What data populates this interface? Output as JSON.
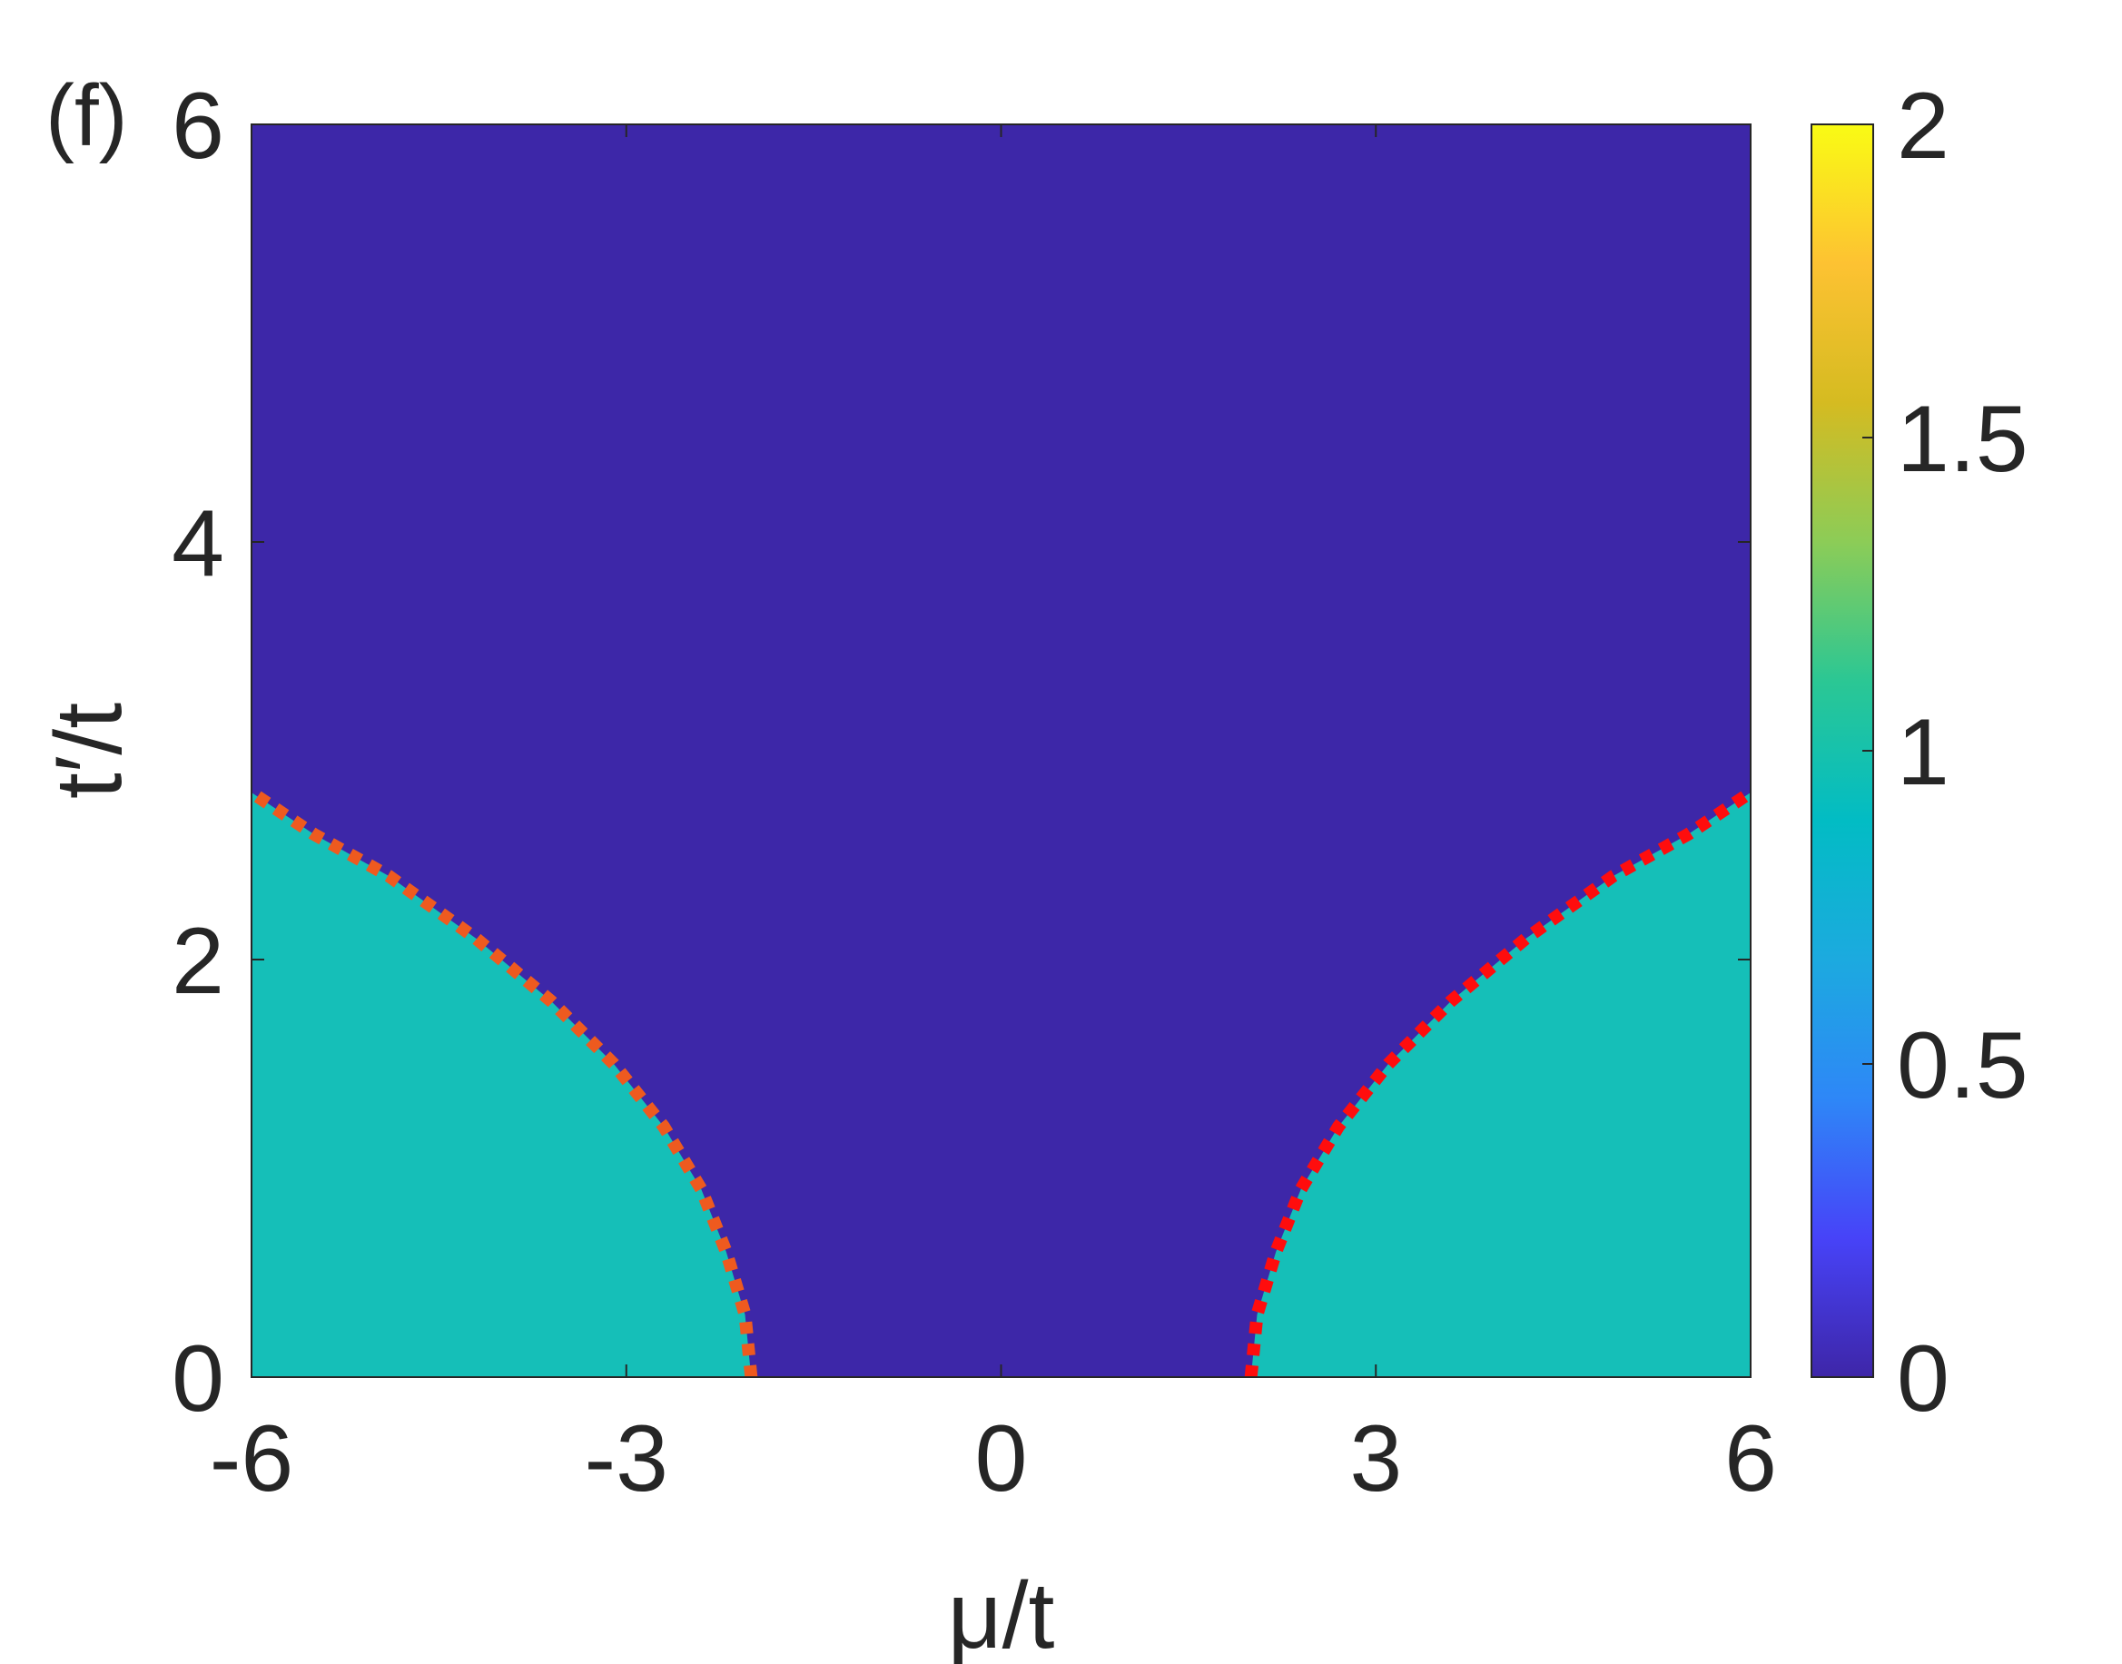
{
  "chart_data": {
    "type": "heatmap",
    "panel_label": "(f)",
    "xlabel": "μ/t",
    "ylabel": "t′/t",
    "xlim": [
      -6,
      6
    ],
    "ylim": [
      0,
      6
    ],
    "xticks": [
      -6,
      -3,
      0,
      3,
      6
    ],
    "xtick_labels": [
      "-6",
      "-3",
      "0",
      "3",
      "6"
    ],
    "yticks": [
      0,
      2,
      4,
      6
    ],
    "ytick_labels": [
      "0",
      "2",
      "4",
      "6"
    ],
    "colorbar": {
      "colormap": "parula",
      "lim": [
        0,
        2
      ],
      "ticks": [
        0,
        0.5,
        1,
        1.5,
        2
      ],
      "tick_labels": [
        "0",
        "0.5",
        "1",
        "1.5",
        "2"
      ],
      "stops": [
        "#3e26a8",
        "#4743f8",
        "#2e87f7",
        "#1caadf",
        "#02bcc4",
        "#2bc794",
        "#8ccc57",
        "#d5bb21",
        "#fdc232",
        "#f9fb14"
      ]
    },
    "regions": [
      {
        "value": 0,
        "color": "#3d27a8",
        "description_role": "background"
      },
      {
        "value": 1,
        "color": "#15bfb8",
        "boundary_role": "left"
      },
      {
        "value": 1,
        "color": "#15bfb8",
        "boundary_role": "right"
      }
    ],
    "boundaries": [
      {
        "side": "left",
        "color": "#ee5a1f",
        "points": [
          [
            -2.0,
            0.0
          ],
          [
            -2.05,
            0.3
          ],
          [
            -2.2,
            0.6
          ],
          [
            -2.4,
            0.9
          ],
          [
            -2.7,
            1.2
          ],
          [
            -3.1,
            1.5
          ],
          [
            -3.6,
            1.8
          ],
          [
            -4.2,
            2.1
          ],
          [
            -4.9,
            2.4
          ],
          [
            -5.5,
            2.6
          ],
          [
            -6.0,
            2.8
          ]
        ]
      },
      {
        "side": "right",
        "color": "#ff0d0d",
        "points": [
          [
            2.0,
            0.0
          ],
          [
            2.05,
            0.3
          ],
          [
            2.2,
            0.6
          ],
          [
            2.4,
            0.9
          ],
          [
            2.7,
            1.2
          ],
          [
            3.1,
            1.5
          ],
          [
            3.6,
            1.8
          ],
          [
            4.2,
            2.1
          ],
          [
            4.9,
            2.4
          ],
          [
            5.5,
            2.6
          ],
          [
            6.0,
            2.8
          ]
        ]
      }
    ]
  }
}
